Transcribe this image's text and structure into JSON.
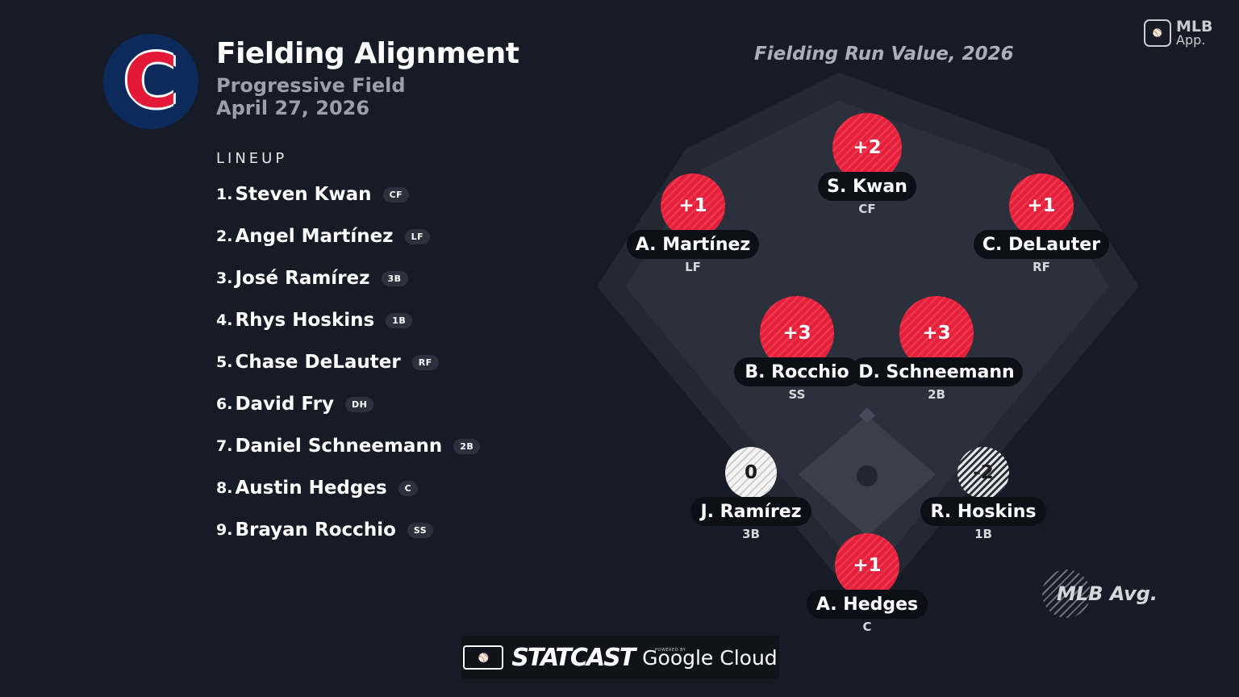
{
  "header": {
    "title": "Fielding Alignment",
    "venue": "Progressive Field",
    "date": "April 27, 2026",
    "team_logo_letter": "C"
  },
  "lineup": {
    "heading": "LINEUP",
    "players": [
      {
        "num": "1.",
        "name": "Steven Kwan",
        "pos": "CF"
      },
      {
        "num": "2.",
        "name": "Angel Martínez",
        "pos": "LF"
      },
      {
        "num": "3.",
        "name": "José Ramírez",
        "pos": "3B"
      },
      {
        "num": "4.",
        "name": "Rhys Hoskins",
        "pos": "1B"
      },
      {
        "num": "5.",
        "name": "Chase DeLauter",
        "pos": "RF"
      },
      {
        "num": "6.",
        "name": "David Fry",
        "pos": "DH"
      },
      {
        "num": "7.",
        "name": "Daniel Schneemann",
        "pos": "2B"
      },
      {
        "num": "8.",
        "name": "Austin Hedges",
        "pos": "C"
      },
      {
        "num": "9.",
        "name": "Brayan Rocchio",
        "pos": "SS"
      }
    ]
  },
  "field": {
    "title": "Fielding Run Value, 2026",
    "positions": [
      {
        "value": "+2",
        "name": "S. Kwan",
        "pos": "CF"
      },
      {
        "value": "+1",
        "name": "A. Martínez",
        "pos": "LF"
      },
      {
        "value": "+1",
        "name": "C. DeLauter",
        "pos": "RF"
      },
      {
        "value": "+3",
        "name": "B. Rocchio",
        "pos": "SS"
      },
      {
        "value": "+3",
        "name": "D. Schneemann",
        "pos": "2B"
      },
      {
        "value": "0",
        "name": "J. Ramírez",
        "pos": "3B"
      },
      {
        "value": "-2",
        "name": "R. Hoskins",
        "pos": "1B"
      },
      {
        "value": "+1",
        "name": "A. Hedges",
        "pos": "C"
      }
    ],
    "legend_label": "MLB Avg."
  },
  "branding": {
    "mlb_app_line1": "MLB",
    "mlb_app_line2": "App.",
    "statcast": "STATCAST",
    "powered_by": "POWERED BY",
    "google_cloud": "Google Cloud"
  },
  "colors": {
    "background": "#171b25",
    "positive": "#e5203a",
    "neutral": "#f4f4f4",
    "team_navy": "#0c2a5b",
    "team_red": "#e31937"
  }
}
